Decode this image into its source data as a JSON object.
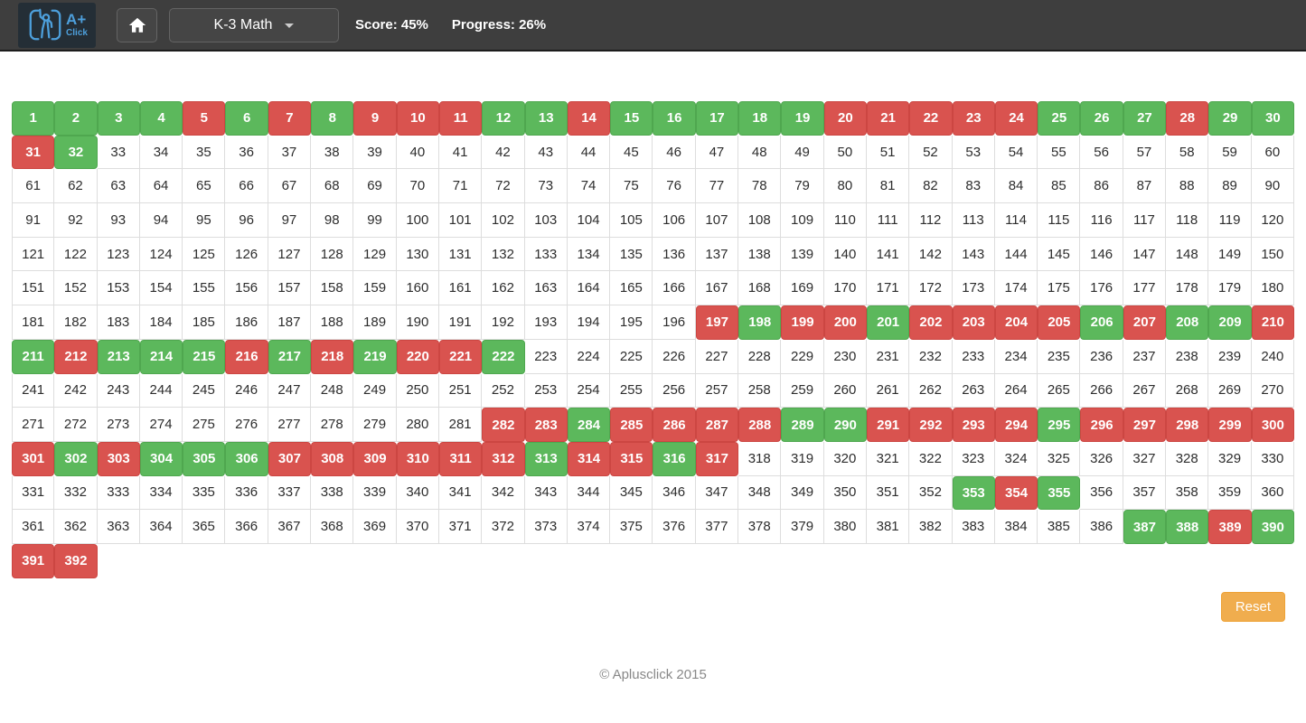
{
  "navbar": {
    "logo": {
      "text_top": "A+",
      "text_bottom": "Click"
    },
    "course_label": "K-3 Math",
    "score_label": "Score: 45%",
    "progress_label": "Progress: 26%"
  },
  "grid": {
    "columns": 30,
    "total_cells": 392,
    "green_cells": [
      1,
      2,
      3,
      4,
      6,
      8,
      12,
      13,
      15,
      16,
      17,
      18,
      19,
      25,
      26,
      27,
      29,
      30,
      32,
      198,
      201,
      206,
      208,
      209,
      211,
      213,
      214,
      215,
      217,
      219,
      222,
      284,
      289,
      290,
      295,
      302,
      304,
      305,
      306,
      313,
      316,
      353,
      355,
      387,
      388,
      390
    ],
    "red_cells": [
      5,
      7,
      9,
      10,
      11,
      14,
      20,
      21,
      22,
      23,
      24,
      28,
      31,
      197,
      199,
      200,
      202,
      203,
      204,
      205,
      207,
      210,
      212,
      216,
      218,
      220,
      221,
      282,
      283,
      285,
      286,
      287,
      288,
      291,
      292,
      293,
      294,
      296,
      297,
      298,
      299,
      300,
      301,
      303,
      307,
      308,
      309,
      310,
      311,
      312,
      314,
      315,
      317,
      354,
      389,
      391,
      392
    ]
  },
  "reset_label": "Reset",
  "footer_text": "© Aplusclick 2015",
  "colors": {
    "correct_green": "#5cb85c",
    "incorrect_red": "#d9534f",
    "reset_orange": "#f0ad4e",
    "navbar_bg": "#3e3e3e",
    "logo_blue": "#4d9fdb"
  }
}
